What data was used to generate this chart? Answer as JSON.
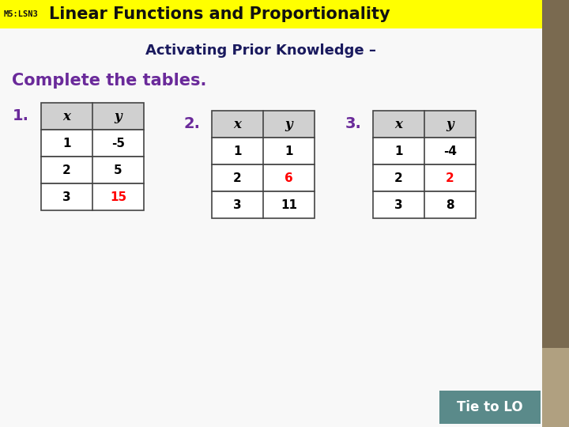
{
  "header_bg": "#FFFF00",
  "header_label": "M5:LSN3",
  "header_title": "Linear Functions and Proportionality",
  "subtitle": "Activating Prior Knowledge –",
  "main_instruction": "Complete the tables.",
  "sidebar_color": "#7a6a50",
  "sidebar_color2": "#b0a080",
  "bg_color": "#f0f0f0",
  "content_bg": "#f5f5f5",
  "table_header_bg": "#d0d0d0",
  "table1": {
    "label": "1.",
    "headers": [
      "x",
      "y"
    ],
    "rows": [
      [
        "1",
        "-5",
        "black",
        "black"
      ],
      [
        "2",
        "5",
        "black",
        "black"
      ],
      [
        "3",
        "15",
        "black",
        "red"
      ]
    ]
  },
  "table2": {
    "label": "2.",
    "headers": [
      "x",
      "y"
    ],
    "rows": [
      [
        "1",
        "1",
        "black",
        "black"
      ],
      [
        "2",
        "6",
        "black",
        "red"
      ],
      [
        "3",
        "11",
        "black",
        "black"
      ]
    ]
  },
  "table3": {
    "label": "3.",
    "headers": [
      "x",
      "y"
    ],
    "rows": [
      [
        "1",
        "-4",
        "black",
        "black"
      ],
      [
        "2",
        "2",
        "black",
        "red"
      ],
      [
        "3",
        "8",
        "black",
        "black"
      ]
    ]
  },
  "footer_bg": "#5a8a8a",
  "footer_text": "Tie to LO",
  "subtitle_color": "#1a1a5e",
  "instruction_color": "#6a2a9a",
  "label_color": "#6a2a9a"
}
